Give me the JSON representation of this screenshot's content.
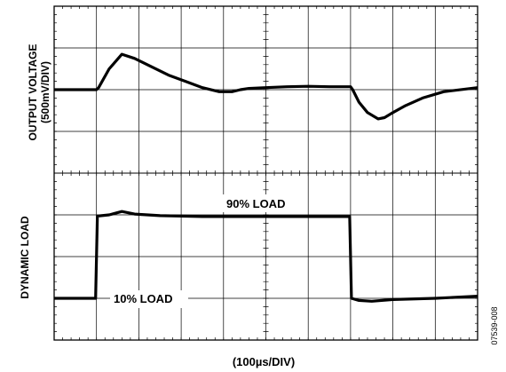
{
  "chart_data": {
    "type": "line",
    "xlabel": "(100µs/DIV)",
    "x_divisions": 10,
    "y_divisions": 8,
    "grid": true,
    "figure_id": "07539-008",
    "x_units": "divisions",
    "y_units": "divisions",
    "series": [
      {
        "name": "OUTPUT VOLTAGE",
        "ylabel_line1": "OUTPUT VOLTAGE",
        "ylabel_line2": "(500mV/DIV)",
        "x": [
          0,
          1.0,
          1.05,
          1.3,
          1.6,
          1.9,
          2.3,
          2.7,
          3.1,
          3.5,
          3.9,
          4.2,
          4.4,
          4.6,
          5.0,
          5.5,
          6.0,
          6.5,
          6.9,
          7.0,
          7.05,
          7.2,
          7.4,
          7.65,
          7.8,
          8.0,
          8.3,
          8.7,
          9.2,
          10.0
        ],
        "y": [
          6.0,
          6.0,
          6.05,
          6.5,
          6.85,
          6.75,
          6.55,
          6.35,
          6.2,
          6.05,
          5.95,
          5.95,
          6.0,
          6.03,
          6.05,
          6.07,
          6.08,
          6.07,
          6.07,
          6.07,
          6.0,
          5.7,
          5.45,
          5.3,
          5.33,
          5.45,
          5.62,
          5.8,
          5.95,
          6.05
        ]
      },
      {
        "name": "DYNAMIC LOAD",
        "ylabel_line1": "DYNAMIC LOAD",
        "x": [
          0,
          0.98,
          1.02,
          1.3,
          1.6,
          1.9,
          2.5,
          3.5,
          5.0,
          6.0,
          6.98,
          7.02,
          7.2,
          7.5,
          8.0,
          9.0,
          10.0
        ],
        "y": [
          1.0,
          1.0,
          2.97,
          3.0,
          3.08,
          3.02,
          2.98,
          2.96,
          2.96,
          2.96,
          2.96,
          1.0,
          0.95,
          0.93,
          0.97,
          1.0,
          1.05
        ]
      }
    ],
    "annotations": [
      "90% LOAD",
      "10% LOAD"
    ]
  }
}
